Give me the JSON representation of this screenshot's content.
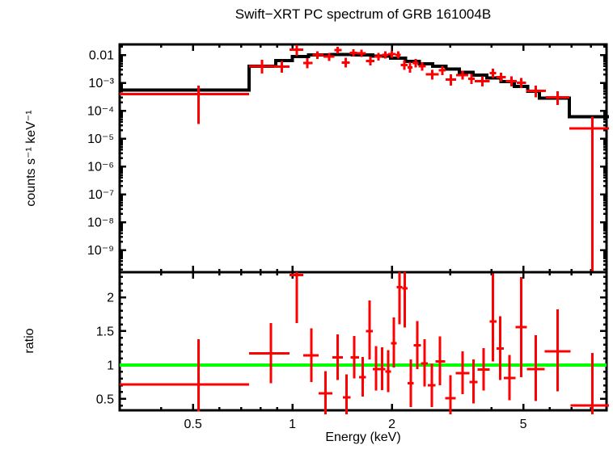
{
  "title": "Swift−XRT PC spectrum of GRB 161004B",
  "labels": {
    "x": "Energy (keV)",
    "spectrum_y": "counts s⁻¹ keV⁻¹",
    "ratio_y": "ratio"
  },
  "colors": {
    "data": "#ff0000",
    "model": "#000000",
    "ratio_unity_line": "#00ff00",
    "axis": "#000000",
    "background": "#ffffff"
  },
  "chart_data": [
    {
      "type": "scatter",
      "panel": "spectrum",
      "description": "Observed count-rate spectrum (red crosses with error bars) and folded model (black histogram)",
      "xscale": "log",
      "yscale": "log",
      "xlim": [
        0.3,
        8.93
      ],
      "ylim": [
        1.6e-10,
        0.024
      ],
      "grid": false,
      "xticks": [
        0.5,
        1,
        2,
        5
      ],
      "xticks_minor": [
        0.4,
        0.6,
        0.7,
        0.8,
        0.9,
        3,
        4,
        6,
        7,
        8
      ],
      "ytick_values": [
        0.01,
        0.001,
        0.0001,
        1e-05,
        1e-06,
        1e-07,
        1e-08,
        1e-09
      ],
      "ytick_labels": [
        "0.01",
        "10⁻³",
        "10⁻⁴",
        "10⁻⁵",
        "10⁻⁶",
        "10⁻⁷",
        "10⁻⁸",
        "10⁻⁹"
      ],
      "point_format": [
        "E_lo_keV",
        "E_keV",
        "E_hi_keV",
        "rate",
        "rate_err_hi",
        "rate_err_lo"
      ],
      "series": [
        {
          "name": "data",
          "color": "#ff0000",
          "style": "cross",
          "points": [
            [
              0.3,
              0.52,
              0.74,
              0.00039,
              0.0008,
              3.3e-05
            ],
            [
              0.74,
              0.81,
              0.88,
              0.0039,
              0.0068,
              0.0022
            ],
            [
              0.88,
              0.93,
              0.98,
              0.0038,
              0.0062,
              0.0023
            ],
            [
              0.98,
              1.03,
              1.08,
              0.0155,
              0.0235,
              0.0095
            ],
            [
              1.08,
              1.11,
              1.15,
              0.0051,
              0.0078,
              0.0033
            ],
            [
              1.15,
              1.19,
              1.24,
              0.01,
              0.0138,
              0.0072
            ],
            [
              1.24,
              1.29,
              1.34,
              0.0087,
              0.012,
              0.0062
            ],
            [
              1.34,
              1.37,
              1.41,
              0.015,
              0.0198,
              0.0112
            ],
            [
              1.41,
              1.45,
              1.49,
              0.0054,
              0.008,
              0.0036
            ],
            [
              1.49,
              1.53,
              1.57,
              0.012,
              0.016,
              0.0089
            ],
            [
              1.57,
              1.62,
              1.67,
              0.0115,
              0.0155,
              0.0085
            ],
            [
              1.67,
              1.72,
              1.77,
              0.0062,
              0.0088,
              0.0043
            ],
            [
              1.77,
              1.82,
              1.87,
              0.0087,
              0.0118,
              0.0063
            ],
            [
              1.87,
              1.91,
              1.95,
              0.01,
              0.0134,
              0.0074
            ],
            [
              1.95,
              2.0,
              2.05,
              0.0107,
              0.0142,
              0.008
            ],
            [
              2.05,
              2.09,
              2.13,
              0.01,
              0.0134,
              0.0074
            ],
            [
              2.13,
              2.18,
              2.23,
              0.0044,
              0.0065,
              0.0029
            ],
            [
              2.23,
              2.27,
              2.31,
              0.0036,
              0.0055,
              0.0023
            ],
            [
              2.31,
              2.36,
              2.41,
              0.0051,
              0.0072,
              0.0036
            ],
            [
              2.41,
              2.47,
              2.53,
              0.0039,
              0.0056,
              0.0027
            ],
            [
              2.53,
              2.65,
              2.77,
              0.002,
              0.0029,
              0.0013
            ],
            [
              2.77,
              2.84,
              2.91,
              0.0028,
              0.004,
              0.0019
            ],
            [
              2.91,
              3.02,
              3.13,
              0.0013,
              0.002,
              0.0008
            ],
            [
              3.13,
              3.27,
              3.41,
              0.0019,
              0.0027,
              0.0013
            ],
            [
              3.41,
              3.48,
              3.56,
              0.0014,
              0.0021,
              0.0009
            ],
            [
              3.56,
              3.76,
              3.96,
              0.00115,
              0.0017,
              0.00075
            ],
            [
              3.96,
              4.05,
              4.14,
              0.00225,
              0.0032,
              0.0015
            ],
            [
              4.14,
              4.28,
              4.43,
              0.0016,
              0.0023,
              0.0011
            ],
            [
              4.43,
              4.6,
              4.78,
              0.00115,
              0.0017,
              0.00075
            ],
            [
              4.78,
              4.93,
              5.1,
              0.001,
              0.0015,
              0.00065
            ],
            [
              5.1,
              5.45,
              5.85,
              0.00051,
              0.0008,
              0.0003
            ],
            [
              5.85,
              6.35,
              6.9,
              0.0003,
              0.0005,
              0.00016
            ],
            [
              6.9,
              8.1,
              9.2,
              2.3e-05,
              6.2e-05,
              1.5e-10
            ]
          ]
        },
        {
          "name": "folded model",
          "color": "#000000",
          "style": "histogram",
          "step_format": [
            "E_lo_keV",
            "E_hi_keV",
            "rate"
          ],
          "steps": [
            [
              0.3,
              0.74,
              0.00055
            ],
            [
              0.74,
              0.89,
              0.0039
            ],
            [
              0.89,
              1.0,
              0.0063
            ],
            [
              1.0,
              1.12,
              0.0087
            ],
            [
              1.12,
              1.3,
              0.0102
            ],
            [
              1.3,
              1.52,
              0.0105
            ],
            [
              1.52,
              1.75,
              0.01
            ],
            [
              1.75,
              1.98,
              0.009
            ],
            [
              1.98,
              2.2,
              0.0076
            ],
            [
              2.2,
              2.42,
              0.006
            ],
            [
              2.42,
              2.66,
              0.0049
            ],
            [
              2.66,
              2.92,
              0.0039
            ],
            [
              2.92,
              3.2,
              0.0031
            ],
            [
              3.2,
              3.52,
              0.0024
            ],
            [
              3.52,
              3.88,
              0.0019
            ],
            [
              3.88,
              4.28,
              0.0015
            ],
            [
              4.28,
              4.7,
              0.0011
            ],
            [
              4.7,
              5.15,
              0.00075
            ],
            [
              5.15,
              5.6,
              0.0005
            ],
            [
              5.6,
              6.9,
              0.00028
            ],
            [
              6.9,
              9.2,
              6e-05
            ]
          ]
        }
      ]
    },
    {
      "type": "scatter",
      "panel": "ratio",
      "description": "Data / model ratio with unity reference line",
      "xscale": "log",
      "yscale": "linear",
      "xlim": [
        0.3,
        8.93
      ],
      "ylim": [
        0.33,
        2.37
      ],
      "grid": false,
      "xticks": [
        0.5,
        1,
        2,
        5
      ],
      "xtick_labels": [
        "0.5",
        "1",
        "2",
        "5"
      ],
      "xticks_minor": [
        0.4,
        0.6,
        0.7,
        0.8,
        0.9,
        3,
        4,
        6,
        7,
        8
      ],
      "ytick_values": [
        0.5,
        1,
        1.5,
        2
      ],
      "ytick_labels": [
        "0.5",
        "1",
        "1.5",
        "2"
      ],
      "yticks_minor_step": 0.1,
      "point_format": [
        "E_lo_keV",
        "E_keV",
        "E_hi_keV",
        "ratio",
        "ratio_err_hi",
        "ratio_err_lo"
      ],
      "series": [
        {
          "name": "unity",
          "color": "#00ff00",
          "style": "hline",
          "y": 1
        },
        {
          "name": "data/model",
          "color": "#ff0000",
          "style": "cross",
          "points": [
            [
              0.3,
              0.52,
              0.74,
              0.71,
              1.38,
              0.31
            ],
            [
              0.74,
              0.86,
              0.98,
              1.17,
              1.62,
              0.73
            ],
            [
              0.98,
              1.03,
              1.08,
              2.33,
              2.45,
              1.62
            ],
            [
              1.08,
              1.14,
              1.2,
              1.14,
              1.54,
              0.75
            ],
            [
              1.2,
              1.26,
              1.32,
              0.58,
              0.91,
              0.25
            ],
            [
              1.32,
              1.37,
              1.42,
              1.11,
              1.45,
              0.78
            ],
            [
              1.42,
              1.46,
              1.5,
              0.52,
              0.86,
              0.18
            ],
            [
              1.5,
              1.54,
              1.59,
              1.11,
              1.43,
              0.8
            ],
            [
              1.59,
              1.63,
              1.67,
              0.82,
              1.12,
              0.53
            ],
            [
              1.67,
              1.71,
              1.75,
              1.5,
              1.95,
              1.08
            ],
            [
              1.75,
              1.79,
              1.83,
              0.94,
              1.28,
              0.62
            ],
            [
              1.83,
              1.87,
              1.91,
              0.94,
              1.26,
              0.63
            ],
            [
              1.91,
              1.95,
              1.99,
              0.9,
              1.22,
              0.6
            ],
            [
              1.99,
              2.03,
              2.07,
              1.32,
              1.7,
              0.96
            ],
            [
              2.07,
              2.11,
              2.15,
              2.15,
              2.45,
              1.6
            ],
            [
              2.15,
              2.19,
              2.23,
              2.13,
              2.45,
              1.55
            ],
            [
              2.23,
              2.28,
              2.33,
              0.73,
              1.08,
              0.38
            ],
            [
              2.33,
              2.39,
              2.45,
              1.29,
              1.65,
              0.94
            ],
            [
              2.45,
              2.51,
              2.57,
              1.02,
              1.38,
              0.68
            ],
            [
              2.57,
              2.64,
              2.71,
              0.7,
              1.02,
              0.38
            ],
            [
              2.71,
              2.8,
              2.9,
              1.05,
              1.42,
              0.7
            ],
            [
              2.9,
              3.01,
              3.12,
              0.51,
              0.85,
              0.18
            ],
            [
              3.12,
              3.27,
              3.43,
              0.88,
              1.2,
              0.57
            ],
            [
              3.43,
              3.53,
              3.63,
              0.75,
              1.08,
              0.43
            ],
            [
              3.63,
              3.79,
              3.95,
              0.93,
              1.25,
              0.62
            ],
            [
              3.95,
              4.05,
              4.15,
              1.64,
              2.35,
              1.05
            ],
            [
              4.15,
              4.25,
              4.36,
              1.24,
              1.72,
              0.78
            ],
            [
              4.36,
              4.54,
              4.73,
              0.81,
              1.15,
              0.48
            ],
            [
              4.73,
              4.93,
              5.13,
              1.56,
              2.3,
              0.82
            ],
            [
              5.13,
              5.46,
              5.81,
              0.94,
              1.44,
              0.47
            ],
            [
              5.81,
              6.35,
              6.95,
              1.2,
              1.82,
              0.61
            ],
            [
              6.95,
              8.1,
              9.2,
              0.4,
              1.18,
              0.1
            ]
          ]
        }
      ]
    }
  ]
}
